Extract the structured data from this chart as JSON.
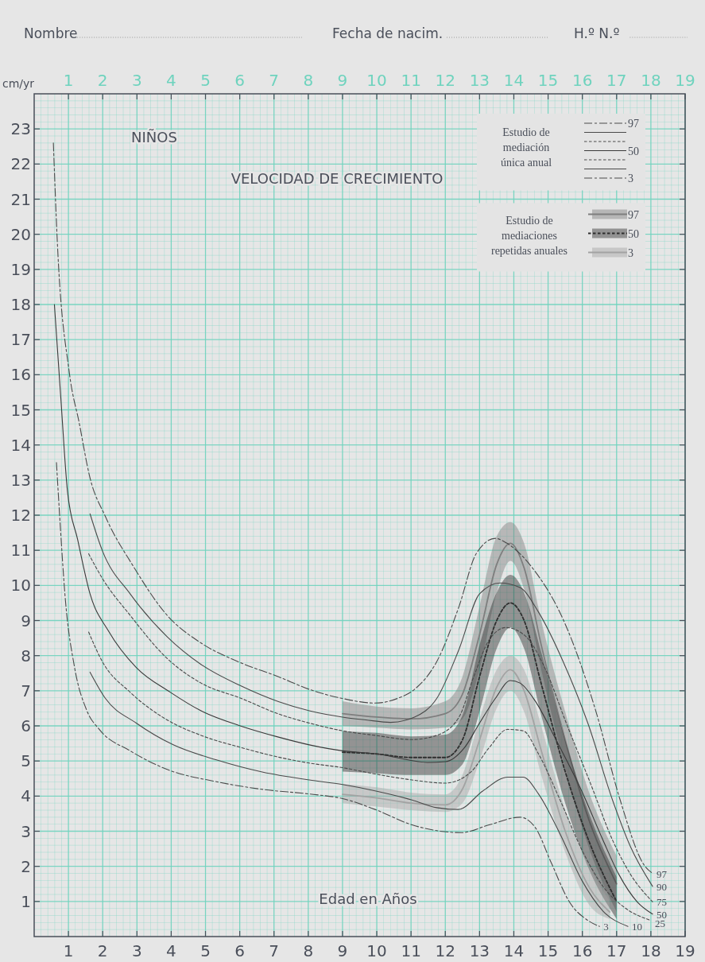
{
  "chart_data": {
    "type": "line",
    "title": "VELOCIDAD DE CRECIMIENTO",
    "subtitle": "NIÑOS",
    "xlabel": "Edad en Años",
    "ylabel": "cm/yr",
    "annotations": [
      "Nombre",
      "Fecha de nacim.",
      "H.º N.º",
      "Estudio de mediación única anual",
      "Estudio de mediaciones repetidas anuales"
    ],
    "xlim": [
      0,
      19
    ],
    "ylim": [
      0,
      24
    ],
    "xticks": [
      {
        "value": 0.2,
        "label": null
      },
      {
        "value": 0.4,
        "label": null
      },
      {
        "value": 0.6,
        "label": null
      },
      {
        "value": 0.8,
        "label": null
      },
      1,
      {
        "value": 1.2,
        "label": null
      },
      {
        "value": 1.4,
        "label": null
      },
      {
        "value": 1.6,
        "label": null
      },
      {
        "value": 1.8,
        "label": null
      },
      2,
      {
        "value": 2.2,
        "label": null
      },
      {
        "value": 2.4,
        "label": null
      },
      {
        "value": 2.6,
        "label": null
      },
      {
        "value": 2.8,
        "label": null
      },
      3,
      {
        "value": 3.2,
        "label": null
      },
      {
        "value": 3.4,
        "label": null
      },
      {
        "value": 3.6,
        "label": null
      },
      {
        "value": 3.8,
        "label": null
      },
      4,
      {
        "value": 4.2,
        "label": null
      },
      {
        "value": 4.4,
        "label": null
      },
      {
        "value": 4.6,
        "label": null
      },
      {
        "value": 4.8,
        "label": null
      },
      5,
      {
        "value": 5.2,
        "label": null
      },
      {
        "value": 5.4,
        "label": null
      },
      {
        "value": 5.6,
        "label": null
      },
      {
        "value": 5.8,
        "label": null
      },
      6,
      {
        "value": 6.2,
        "label": null
      },
      {
        "value": 6.4,
        "label": null
      },
      {
        "value": 6.6,
        "label": null
      },
      {
        "value": 6.8,
        "label": null
      },
      7,
      {
        "value": 7.2,
        "label": null
      },
      {
        "value": 7.4,
        "label": null
      },
      {
        "value": 7.6,
        "label": null
      },
      {
        "value": 7.8,
        "label": null
      },
      8,
      {
        "value": 8.2,
        "label": null
      },
      {
        "value": 8.4,
        "label": null
      },
      {
        "value": 8.6,
        "label": null
      },
      {
        "value": 8.8,
        "label": null
      },
      9,
      {
        "value": 9.2,
        "label": null
      },
      {
        "value": 9.4,
        "label": null
      },
      {
        "value": 9.6,
        "label": null
      },
      {
        "value": 9.8,
        "label": null
      },
      10,
      {
        "value": 10.2,
        "label": null
      },
      {
        "value": 10.4,
        "label": null
      },
      {
        "value": 10.6,
        "label": null
      },
      {
        "value": 10.8,
        "label": null
      },
      11,
      {
        "value": 11.2,
        "label": null
      },
      {
        "value": 11.4,
        "label": null
      },
      {
        "value": 11.6,
        "label": null
      },
      {
        "value": 11.8,
        "label": null
      },
      12,
      {
        "value": 12.2,
        "label": null
      },
      {
        "value": 12.4,
        "label": null
      },
      {
        "value": 12.6,
        "label": null
      },
      {
        "value": 12.8,
        "label": null
      },
      13,
      {
        "value": 13.2,
        "label": null
      },
      {
        "value": 13.4,
        "label": null
      },
      {
        "value": 13.6,
        "label": null
      },
      {
        "value": 13.8,
        "label": null
      },
      14,
      {
        "value": 14.2,
        "label": null
      },
      {
        "value": 14.4,
        "label": null
      },
      {
        "value": 14.6,
        "label": null
      },
      {
        "value": 14.8,
        "label": null
      },
      15,
      {
        "value": 15.2,
        "label": null
      },
      {
        "value": 15.4,
        "label": null
      },
      {
        "value": 15.6,
        "label": null
      },
      {
        "value": 15.8,
        "label": null
      },
      16,
      {
        "value": 16.2,
        "label": null
      },
      {
        "value": 16.4,
        "label": null
      },
      {
        "value": 16.6,
        "label": null
      },
      {
        "value": 16.8,
        "label": null
      },
      17,
      {
        "value": 17.2,
        "label": null
      },
      {
        "value": 17.4,
        "label": null
      },
      {
        "value": 17.6,
        "label": null
      },
      {
        "value": 17.8,
        "label": null
      },
      18,
      {
        "value": 18.2,
        "label": null
      },
      {
        "value": 18.4,
        "label": null
      },
      {
        "value": 18.6,
        "label": null
      },
      {
        "value": 18.8,
        "label": null
      },
      19
    ],
    "x2lim": [
      0,
      19
    ],
    "x2ticks": [
      1,
      2,
      3,
      4,
      5,
      6,
      7,
      8,
      9,
      10,
      11,
      12,
      13,
      14,
      15,
      16,
      17,
      18,
      19
    ],
    "yticks": [
      {
        "value": 0.2,
        "label": null
      },
      {
        "value": 0.4,
        "label": null
      },
      {
        "value": 0.6,
        "label": null
      },
      {
        "value": 0.8,
        "label": null
      },
      1,
      {
        "value": 1.2,
        "label": null
      },
      {
        "value": 1.4,
        "label": null
      },
      {
        "value": 1.6,
        "label": null
      },
      {
        "value": 1.8,
        "label": null
      },
      2,
      {
        "value": 2.2,
        "label": null
      },
      {
        "value": 2.4,
        "label": null
      },
      {
        "value": 2.6,
        "label": null
      },
      {
        "value": 2.8,
        "label": null
      },
      3,
      {
        "value": 3.2,
        "label": null
      },
      {
        "value": 3.4,
        "label": null
      },
      {
        "value": 3.6,
        "label": null
      },
      {
        "value": 3.8,
        "label": null
      },
      4,
      {
        "value": 4.2,
        "label": null
      },
      {
        "value": 4.4,
        "label": null
      },
      {
        "value": 4.6,
        "label": null
      },
      {
        "value": 4.8,
        "label": null
      },
      5,
      {
        "value": 5.2,
        "label": null
      },
      {
        "value": 5.4,
        "label": null
      },
      {
        "value": 5.6,
        "label": null
      },
      {
        "value": 5.8,
        "label": null
      },
      6,
      {
        "value": 6.2,
        "label": null
      },
      {
        "value": 6.4,
        "label": null
      },
      {
        "value": 6.6,
        "label": null
      },
      {
        "value": 6.8,
        "label": null
      },
      7,
      {
        "value": 7.2,
        "label": null
      },
      {
        "value": 7.4,
        "label": null
      },
      {
        "value": 7.6,
        "label": null
      },
      {
        "value": 7.8,
        "label": null
      },
      8,
      {
        "value": 8.2,
        "label": null
      },
      {
        "value": 8.4,
        "label": null
      },
      {
        "value": 8.6,
        "label": null
      },
      {
        "value": 8.8,
        "label": null
      },
      9,
      {
        "value": 9.2,
        "label": null
      },
      {
        "value": 9.4,
        "label": null
      },
      {
        "value": 9.6,
        "label": null
      },
      {
        "value": 9.8,
        "label": null
      },
      10,
      {
        "value": 10.2,
        "label": null
      },
      {
        "value": 10.4,
        "label": null
      },
      {
        "value": 10.6,
        "label": null
      },
      {
        "value": 10.8,
        "label": null
      },
      11,
      {
        "value": 11.2,
        "label": null
      },
      {
        "value": 11.4,
        "label": null
      },
      {
        "value": 11.6,
        "label": null
      },
      {
        "value": 11.8,
        "label": null
      },
      12,
      {
        "value": 12.2,
        "label": null
      },
      {
        "value": 12.4,
        "label": null
      },
      {
        "value": 12.6,
        "label": null
      },
      {
        "value": 12.8,
        "label": null
      },
      13,
      {
        "value": 13.2,
        "label": null
      },
      {
        "value": 13.4,
        "label": null
      },
      {
        "value": 13.6,
        "label": null
      },
      {
        "value": 13.8,
        "label": null
      },
      14,
      {
        "value": 14.2,
        "label": null
      },
      {
        "value": 14.4,
        "label": null
      },
      {
        "value": 14.6,
        "label": null
      },
      {
        "value": 14.8,
        "label": null
      },
      15,
      {
        "value": 15.2,
        "label": null
      },
      {
        "value": 15.4,
        "label": null
      },
      {
        "value": 15.6,
        "label": null
      },
      {
        "value": 15.8,
        "label": null
      },
      16,
      {
        "value": 16.2,
        "label": null
      },
      {
        "value": 16.4,
        "label": null
      },
      {
        "value": 16.6,
        "label": null
      },
      {
        "value": 16.8,
        "label": null
      },
      17,
      {
        "value": 17.2,
        "label": null
      },
      {
        "value": 17.4,
        "label": null
      },
      {
        "value": 17.6,
        "label": null
      },
      {
        "value": 17.8,
        "label": null
      },
      18,
      {
        "value": 18.2,
        "label": null
      },
      {
        "value": 18.4,
        "label": null
      },
      {
        "value": 18.6,
        "label": null
      },
      {
        "value": 18.8,
        "label": null
      },
      19,
      {
        "value": 19.2,
        "label": null
      },
      {
        "value": 19.4,
        "label": null
      },
      {
        "value": 19.6,
        "label": null
      },
      {
        "value": 19.8,
        "label": null
      },
      20,
      {
        "value": 20.2,
        "label": null
      },
      {
        "value": 20.4,
        "label": null
      },
      {
        "value": 20.6,
        "label": null
      },
      {
        "value": 20.8,
        "label": null
      },
      21,
      {
        "value": 21.2,
        "label": null
      },
      {
        "value": 21.4,
        "label": null
      },
      {
        "value": 21.6,
        "label": null
      },
      {
        "value": 21.8,
        "label": null
      },
      22,
      {
        "value": 22.2,
        "label": null
      },
      {
        "value": 22.4,
        "label": null
      },
      {
        "value": 22.6,
        "label": null
      },
      {
        "value": 22.8,
        "label": null
      },
      23,
      {
        "value": 23.2,
        "label": null
      },
      {
        "value": 23.4,
        "label": null
      },
      {
        "value": 23.6,
        "label": null
      },
      {
        "value": 23.8,
        "label": null
      }
    ],
    "grid": true,
    "legend": "top right",
    "series": [
      {
        "name": "97",
        "color": "#7e7e7e",
        "line_style": "solid",
        "x": [
          9,
          10,
          11,
          12,
          12.5,
          13,
          13.5,
          13.9,
          14.3,
          14.8,
          15.5,
          16.2,
          17
        ],
        "values": [
          6.35,
          6.25,
          6.2,
          6.35,
          6.9,
          8.6,
          10.6,
          11.2,
          10.5,
          8.3,
          5.6,
          3.3,
          1.5
        ],
        "lower": [
          6,
          5.95,
          5.9,
          5.95,
          6.2,
          7.6,
          9.8,
          10.7,
          9.9,
          7.6,
          4.8,
          2.5,
          0.7
        ],
        "upper": [
          6.7,
          6.55,
          6.5,
          6.7,
          7.4,
          9.4,
          11.4,
          11.8,
          11.2,
          9,
          6.4,
          4.1,
          2.3
        ]
      },
      {
        "name": "50",
        "color": "#2e2e2e",
        "line_style": "dotted",
        "x": [
          9,
          10,
          11,
          12,
          12.5,
          13,
          13.5,
          13.9,
          14.3,
          14.8,
          15.5,
          16.2,
          17
        ],
        "values": [
          5.25,
          5.2,
          5.1,
          5.1,
          5.6,
          7.4,
          9,
          9.5,
          9,
          7.2,
          4.7,
          2.7,
          1
        ],
        "lower": [
          4.7,
          4.65,
          4.6,
          4.6,
          4.9,
          6.4,
          8.2,
          8.8,
          8.2,
          6.3,
          3.8,
          1.9,
          0.5
        ],
        "upper": [
          5.85,
          5.8,
          5.7,
          5.75,
          6.3,
          8.3,
          9.8,
          10.3,
          9.8,
          8.1,
          5.6,
          3.5,
          1.7
        ]
      },
      {
        "name": "3",
        "color": "#a3a3a3",
        "line_style": "solid",
        "x": [
          9,
          10,
          11,
          12,
          12.5,
          13,
          13.5,
          13.9,
          14.3,
          14.8,
          15.5,
          16.2,
          16.8
        ],
        "values": [
          4.05,
          3.95,
          3.8,
          3.75,
          4.2,
          5.6,
          7.1,
          7.6,
          7,
          5.3,
          3,
          1.4,
          0.7
        ],
        "lower": [
          3.8,
          3.7,
          3.6,
          3.55,
          3.8,
          5,
          6.5,
          7,
          6.4,
          4.6,
          2.4,
          0.9,
          0.5
        ],
        "upper": [
          4.35,
          4.25,
          4.1,
          4.05,
          4.6,
          6.2,
          7.6,
          8,
          7.6,
          6,
          3.6,
          2,
          1
        ]
      },
      {
        "name": "97",
        "color": "#4a4a4a",
        "line_style": "dashed",
        "x": [
          0.56,
          0.67,
          1.02,
          1.32,
          1.62,
          2.08,
          2.89,
          3.88,
          4.87,
          5.95,
          7.13,
          8.03,
          9,
          9.95,
          10.6,
          11.1,
          11.75,
          12.4,
          12.9,
          13.46,
          13.8,
          14.5,
          15.5,
          16.4,
          17.1,
          17.8,
          18.05
        ],
        "values": [
          22.6,
          19.9,
          16.1,
          14.6,
          13.1,
          11.96,
          10.55,
          9.15,
          8.36,
          7.83,
          7.4,
          7.04,
          6.78,
          6.65,
          6.78,
          7.04,
          7.83,
          9.4,
          10.9,
          11.34,
          11.2,
          10.55,
          8.9,
          6.4,
          3.9,
          2.04,
          1.8
        ]
      },
      {
        "name": "90",
        "color": "#4a4a4a",
        "line_style": "solid",
        "x": [
          1.63,
          1.99,
          2.8,
          3.88,
          4.87,
          6.05,
          7.13,
          8.03,
          9,
          9.68,
          10.4,
          11.1,
          11.75,
          12.4,
          13,
          13.6,
          14.18,
          14.72,
          15.44,
          16.16,
          16.88,
          17.4,
          18.05
        ],
        "values": [
          12.04,
          10.99,
          9.76,
          8.54,
          7.75,
          7.13,
          6.69,
          6.43,
          6.25,
          6.17,
          6.1,
          6.25,
          6.78,
          8.18,
          9.76,
          10.07,
          9.94,
          9.24,
          7.83,
          6.08,
          3.89,
          2.57,
          1.43
        ]
      },
      {
        "name": "75",
        "color": "#4a4a4a",
        "line_style": "dotted",
        "x": [
          1.59,
          1.99,
          2.8,
          3.88,
          4.87,
          6.05,
          7.13,
          8.03,
          9,
          9.95,
          11.03,
          11.75,
          12.4,
          12.83,
          13.28,
          13.77,
          14.36,
          14.9,
          15.53,
          16.25,
          16.88,
          17.4,
          18.05
        ],
        "values": [
          10.9,
          10.2,
          9.15,
          7.92,
          7.22,
          6.78,
          6.34,
          6.08,
          5.86,
          5.73,
          5.61,
          5.73,
          6.25,
          7.4,
          8.45,
          8.8,
          8.54,
          7.66,
          6.08,
          4.33,
          2.75,
          1.78,
          0.99
        ]
      },
      {
        "name": "50",
        "color": "#3a3a3a",
        "line_style": "solid",
        "x": [
          0.59,
          0.78,
          0.97,
          1.27,
          1.63,
          2.17,
          2.98,
          3.97,
          4.87,
          6.05,
          7.13,
          8.03,
          9,
          10.04,
          11.48,
          12,
          12.56,
          13,
          13.46,
          13.9,
          14.18,
          14.63,
          15.26,
          15.98,
          16.6,
          17.06,
          17.6,
          18.05
        ],
        "values": [
          18,
          15.3,
          12.7,
          11.3,
          9.76,
          8.7,
          7.66,
          6.96,
          6.43,
          5.99,
          5.68,
          5.46,
          5.29,
          5.2,
          4.96,
          4.98,
          5.38,
          6.08,
          6.78,
          7.29,
          7.22,
          6.7,
          5.55,
          4.15,
          2.75,
          1.78,
          0.99,
          0.64
        ]
      },
      {
        "name": "25",
        "color": "#4a4a4a",
        "line_style": "dotted",
        "x": [
          1.59,
          1.99,
          2.8,
          3.88,
          4.87,
          6.05,
          7.13,
          8.03,
          9,
          9.95,
          11.03,
          12,
          12.74,
          13.28,
          13.82,
          14.27,
          14.72,
          15.35,
          15.98,
          16.6,
          17.24,
          18
        ],
        "values": [
          8.67,
          7.83,
          6.96,
          6.17,
          5.73,
          5.38,
          5.11,
          4.94,
          4.81,
          4.63,
          4.46,
          4.37,
          4.68,
          5.38,
          5.9,
          5.86,
          5.2,
          3.89,
          2.48,
          1.43,
          0.82,
          0.46
        ]
      },
      {
        "name": "10",
        "color": "#4a4a4a",
        "line_style": "solid",
        "x": [
          1.63,
          2.08,
          2.98,
          4.06,
          5.32,
          6.68,
          8.03,
          9,
          9.95,
          11.03,
          11.75,
          12.38,
          13.1,
          13.82,
          14.27,
          14.72,
          15.35,
          15.98,
          16.6,
          17.33
        ],
        "values": [
          7.53,
          6.78,
          6.08,
          5.46,
          5.03,
          4.68,
          4.46,
          4.33,
          4.15,
          3.89,
          3.67,
          3.62,
          4.15,
          4.54,
          4.54,
          4.06,
          2.92,
          1.61,
          0.73,
          0.29
        ]
      },
      {
        "name": "3",
        "color": "#4a4a4a",
        "line_style": "dashed",
        "x": [
          0.65,
          0.73,
          0.91,
          1.18,
          1.54,
          1.9,
          2.8,
          3.88,
          5.32,
          6.68,
          8.03,
          9,
          9.95,
          11.03,
          12.47,
          13.28,
          14.18,
          14.63,
          15.08,
          15.62,
          16.16,
          16.5
        ],
        "values": [
          13.5,
          12.2,
          9.6,
          7.66,
          6.43,
          5.9,
          5.29,
          4.76,
          4.41,
          4.19,
          4.06,
          3.93,
          3.62,
          3.18,
          2.96,
          3.18,
          3.4,
          3.1,
          2.13,
          0.99,
          0.46,
          0.29
        ]
      }
    ]
  }
}
